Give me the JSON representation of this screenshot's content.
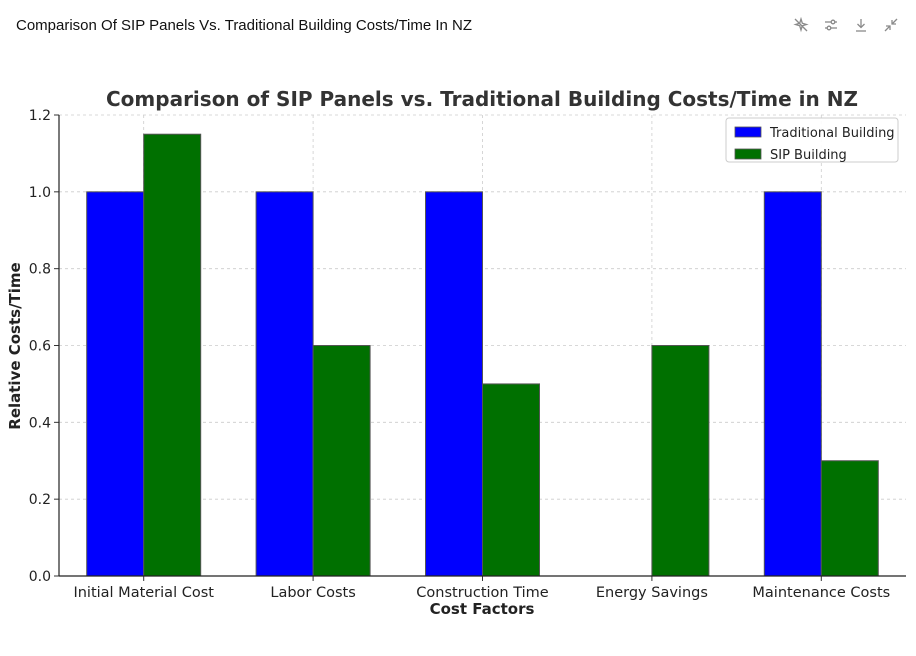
{
  "header": {
    "title": "Comparison Of SIP Panels Vs. Traditional Building Costs/Time In NZ",
    "icons": [
      "ai-sparkle-off-icon",
      "sliders-icon",
      "download-icon",
      "collapse-icon"
    ]
  },
  "chart_data": {
    "type": "bar",
    "title": "Comparison of SIP Panels vs. Traditional Building Costs/Time in NZ",
    "xlabel": "Cost Factors",
    "ylabel": "Relative Costs/Time",
    "ylim": [
      0,
      1.2
    ],
    "yticks": [
      "0.0",
      "0.2",
      "0.4",
      "0.6",
      "0.8",
      "1.0",
      "1.2"
    ],
    "grid": true,
    "legend_position": "top-right",
    "categories": [
      "Initial Material Cost",
      "Labor Costs",
      "Construction Time",
      "Energy Savings",
      "Maintenance Costs"
    ],
    "series": [
      {
        "name": "Traditional Building",
        "color": "#0000ff",
        "values": [
          1.0,
          1.0,
          1.0,
          0,
          1.0
        ]
      },
      {
        "name": "SIP Building",
        "color": "#007000",
        "values": [
          1.15,
          0.6,
          0.5,
          0.6,
          0.3
        ]
      }
    ]
  }
}
